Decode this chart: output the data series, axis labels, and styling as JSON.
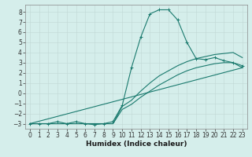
{
  "title": "",
  "xlabel": "Humidex (Indice chaleur)",
  "ylabel": "",
  "xlim": [
    -0.5,
    23.5
  ],
  "ylim": [
    -3.5,
    8.7
  ],
  "xticks": [
    0,
    1,
    2,
    3,
    4,
    5,
    6,
    7,
    8,
    9,
    10,
    11,
    12,
    13,
    14,
    15,
    16,
    17,
    18,
    19,
    20,
    21,
    22,
    23
  ],
  "yticks": [
    -3,
    -2,
    -1,
    0,
    1,
    2,
    3,
    4,
    5,
    6,
    7,
    8
  ],
  "bg_color": "#d5eeeb",
  "grid_color": "#c0d8d5",
  "line_color": "#1a7a6e",
  "line1_x": [
    0,
    1,
    2,
    3,
    4,
    5,
    6,
    7,
    8,
    9,
    10,
    11,
    12,
    13,
    14,
    15,
    16,
    17,
    18,
    19,
    20,
    21,
    22,
    23
  ],
  "line1_y": [
    -3,
    -3,
    -3,
    -2.8,
    -3,
    -2.8,
    -3,
    -3.1,
    -3,
    -2.8,
    -1.2,
    2.5,
    5.5,
    7.8,
    8.2,
    8.2,
    7.2,
    5.0,
    3.4,
    3.3,
    3.5,
    3.2,
    3.0,
    2.7
  ],
  "line2_x": [
    0,
    9,
    10,
    11,
    12,
    13,
    14,
    15,
    16,
    17,
    18,
    19,
    20,
    21,
    22,
    23
  ],
  "line2_y": [
    -3,
    -3,
    -1.3,
    -0.7,
    0.2,
    1.0,
    1.7,
    2.2,
    2.7,
    3.1,
    3.4,
    3.6,
    3.8,
    3.9,
    4.0,
    3.5
  ],
  "line3_x": [
    0,
    9,
    10,
    11,
    12,
    13,
    14,
    15,
    16,
    17,
    18,
    19,
    20,
    21,
    22,
    23
  ],
  "line3_y": [
    -3,
    -3,
    -1.6,
    -1.1,
    -0.4,
    0.2,
    0.8,
    1.3,
    1.8,
    2.2,
    2.5,
    2.7,
    2.9,
    3.0,
    3.0,
    2.5
  ],
  "line4_x": [
    0,
    23
  ],
  "line4_y": [
    -3,
    2.5
  ],
  "xlabel_fontsize": 6.5,
  "tick_fontsize": 5.5
}
